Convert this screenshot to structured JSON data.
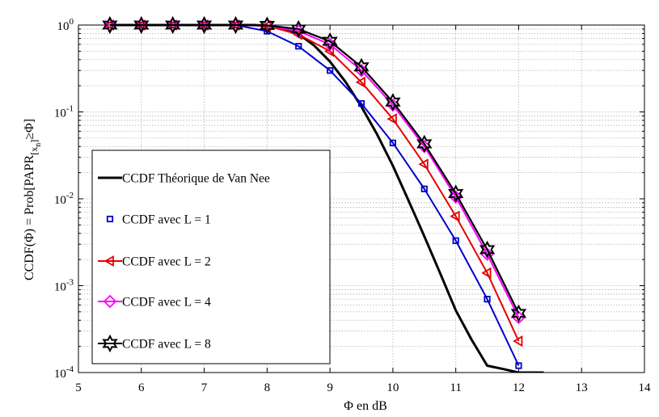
{
  "chart_data": {
    "type": "line",
    "xlabel": "Φ en dB",
    "ylabel": "CCDF(Φ) = Prob[PAPR",
    "ylabel_sub": "[x",
    "ylabel_subsub": "n",
    "ylabel_tail": "]",
    "ylabel_end": "≥Φ]",
    "xlim": [
      5,
      14
    ],
    "ylim": [
      0.0001,
      1
    ],
    "yscale": "log",
    "grid": true,
    "legend_position": "left",
    "x_ticks": [
      "5",
      "6",
      "7",
      "8",
      "9",
      "10",
      "11",
      "12",
      "13",
      "14"
    ],
    "y_ticks": [
      {
        "base": "10",
        "exp": "0"
      },
      {
        "base": "10",
        "exp": "-1"
      },
      {
        "base": "10",
        "exp": "-2"
      },
      {
        "base": "10",
        "exp": "-3"
      },
      {
        "base": "10",
        "exp": "-4"
      }
    ],
    "series": [
      {
        "name": "CCDF Théorique de Van Nee",
        "color": "#000000",
        "marker": "none",
        "x": [
          5.5,
          6,
          6.5,
          7,
          7.5,
          7.8,
          8,
          8.25,
          8.5,
          8.75,
          9,
          9.25,
          9.5,
          9.75,
          10,
          10.25,
          10.5,
          10.75,
          11,
          11.25,
          11.5,
          11.75,
          12,
          12.25,
          12.4
        ],
        "y": [
          1,
          1,
          1,
          1,
          1,
          1,
          0.985,
          0.93,
          0.79,
          0.58,
          0.38,
          0.22,
          0.115,
          0.055,
          0.024,
          0.0095,
          0.0037,
          0.0014,
          0.00052,
          0.00024,
          0.00012,
          0.00011,
          0.0001,
          0.0001,
          0.0001
        ]
      },
      {
        "name": "CCDF avec L = 1",
        "color": "#0000cc",
        "marker": "square",
        "x": [
          5.5,
          6,
          6.5,
          7,
          7.5,
          8,
          8.5,
          9,
          9.5,
          10,
          10.5,
          11,
          11.5,
          12
        ],
        "y": [
          1,
          1,
          1,
          1,
          1,
          0.85,
          0.57,
          0.3,
          0.125,
          0.044,
          0.013,
          0.0033,
          0.0007,
          0.00012
        ]
      },
      {
        "name": "CCDF avec L = 2",
        "color": "#e60000",
        "marker": "triangle-left",
        "x": [
          5.5,
          6,
          6.5,
          7,
          7.5,
          8,
          8.5,
          9,
          9.5,
          10,
          10.5,
          11,
          11.5,
          12
        ],
        "y": [
          1,
          1,
          1,
          1,
          1,
          0.98,
          0.78,
          0.5,
          0.22,
          0.083,
          0.025,
          0.0063,
          0.0014,
          0.00023
        ]
      },
      {
        "name": "CCDF avec L = 4",
        "color": "#ff00ff",
        "marker": "diamond",
        "x": [
          5.5,
          6,
          6.5,
          7,
          7.5,
          8,
          8.5,
          9,
          9.5,
          10,
          10.5,
          11,
          11.5,
          12
        ],
        "y": [
          1,
          1,
          1,
          1,
          1,
          0.99,
          0.85,
          0.6,
          0.3,
          0.12,
          0.04,
          0.0105,
          0.0023,
          0.00043
        ]
      },
      {
        "name": "CCDF avec L = 8",
        "color": "#000000",
        "marker": "hexagram",
        "x": [
          5.5,
          6,
          6.5,
          7,
          7.5,
          8,
          8.5,
          9,
          9.5,
          10,
          10.5,
          11,
          11.5,
          12
        ],
        "y": [
          1,
          1,
          1,
          1,
          1,
          0.99,
          0.9,
          0.65,
          0.33,
          0.13,
          0.043,
          0.0115,
          0.0026,
          0.00048
        ]
      }
    ]
  }
}
